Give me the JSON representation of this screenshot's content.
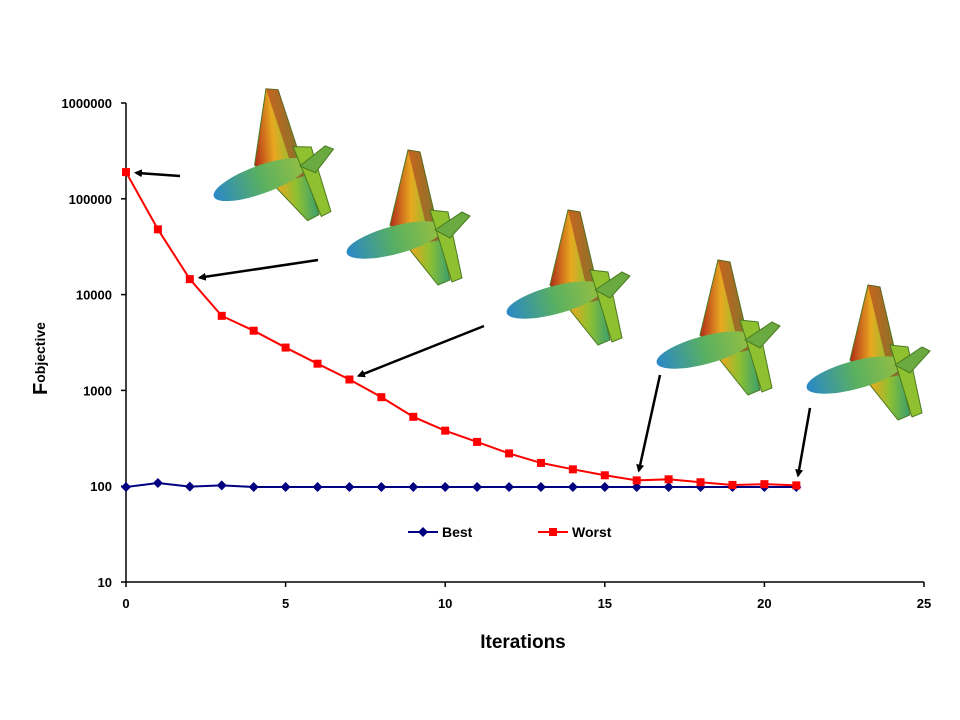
{
  "chart_data": {
    "type": "line",
    "xlabel": "Iterations",
    "ylabel": "F",
    "ylabel_subscript": "objective",
    "yscale": "log",
    "xlim": [
      0,
      25
    ],
    "ylim": [
      10,
      1000000
    ],
    "x_ticks": [
      "0",
      "5",
      "10",
      "15",
      "20",
      "25"
    ],
    "y_ticks": [
      "10",
      "100",
      "1000",
      "10000",
      "100000",
      "1000000"
    ],
    "grid": false,
    "legend_position": "bottom-center",
    "series": [
      {
        "name": "Best",
        "color": "#000080",
        "marker": "diamond",
        "x": [
          0,
          1,
          2,
          3,
          4,
          5,
          6,
          7,
          8,
          9,
          10,
          11,
          12,
          13,
          14,
          15,
          16,
          17,
          18,
          19,
          20,
          21
        ],
        "y": [
          98,
          108,
          99,
          102,
          98,
          98,
          98,
          98,
          98,
          98,
          98,
          98,
          98,
          98,
          98,
          98,
          98,
          98,
          98,
          98,
          98,
          98
        ]
      },
      {
        "name": "Worst",
        "color": "#ff0000",
        "marker": "square",
        "x": [
          0,
          1,
          2,
          3,
          4,
          5,
          6,
          7,
          8,
          9,
          10,
          11,
          12,
          13,
          14,
          15,
          16,
          17,
          18,
          19,
          20,
          21
        ],
        "y": [
          190000,
          48000,
          14500,
          6000,
          4200,
          2800,
          1900,
          1300,
          850,
          530,
          380,
          290,
          220,
          175,
          150,
          130,
          115,
          118,
          110,
          103,
          105,
          102
        ]
      }
    ],
    "annotations": [
      {
        "name": "aircraft-shape-iteration-0",
        "points_to": {
          "x": 0,
          "y": 190000
        }
      },
      {
        "name": "aircraft-shape-iteration-2",
        "points_to": {
          "x": 2,
          "y": 14500
        }
      },
      {
        "name": "aircraft-shape-iteration-7",
        "points_to": {
          "x": 7,
          "y": 1300
        }
      },
      {
        "name": "aircraft-shape-iteration-16",
        "points_to": {
          "x": 16,
          "y": 115
        }
      },
      {
        "name": "aircraft-shape-iteration-21",
        "points_to": {
          "x": 21,
          "y": 102
        }
      }
    ]
  }
}
